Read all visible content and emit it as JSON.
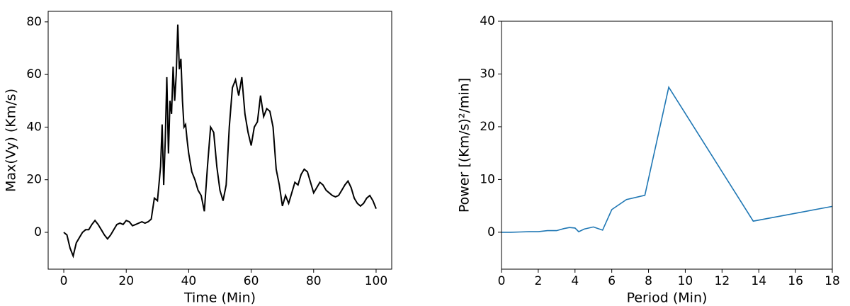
{
  "chart_data": [
    {
      "type": "line",
      "x_label": "Time (Min)",
      "y_label": "Max(Vy) (Km/s)",
      "xlim": [
        -5,
        105
      ],
      "ylim": [
        -14,
        84
      ],
      "xticks": [
        0,
        20,
        40,
        60,
        80,
        100
      ],
      "yticks": [
        0,
        20,
        40,
        60,
        80
      ],
      "series": [
        {
          "color": "#000000",
          "x": [
            0,
            1,
            2,
            3,
            4,
            5,
            6,
            7,
            8,
            9,
            10,
            11,
            12,
            13,
            14,
            15,
            16,
            17,
            18,
            19,
            20,
            21,
            22,
            23,
            24,
            25,
            26,
            27,
            28,
            29,
            30,
            31,
            31.5,
            32,
            32.5,
            33,
            33.5,
            34,
            34.5,
            35,
            35.5,
            36,
            36.5,
            37,
            37.5,
            38,
            38.5,
            39,
            39.5,
            40,
            41,
            42,
            43,
            44,
            45,
            46,
            47,
            48,
            49,
            50,
            51,
            52,
            53,
            54,
            55,
            56,
            57,
            58,
            59,
            60,
            61,
            62,
            63,
            64,
            65,
            66,
            67,
            68,
            69,
            70,
            71,
            72,
            73,
            74,
            75,
            76,
            77,
            78,
            79,
            80,
            81,
            82,
            83,
            84,
            85,
            86,
            87,
            88,
            89,
            90,
            91,
            92,
            93,
            94,
            95,
            96,
            97,
            98,
            99,
            100
          ],
          "values": [
            0,
            -1,
            -6,
            -9,
            -4,
            -2,
            0,
            1,
            1,
            3,
            4.5,
            3,
            1,
            -1,
            -2.5,
            -1,
            1,
            3,
            3.5,
            3,
            4.5,
            4,
            2.5,
            3,
            3.5,
            4,
            3.5,
            4,
            5,
            13,
            12,
            25,
            41,
            18,
            35,
            59,
            30,
            50,
            45,
            63,
            50,
            60,
            79,
            62,
            66,
            50,
            40,
            41,
            35,
            30,
            23,
            20,
            16,
            14,
            8,
            25,
            40,
            38,
            25,
            16,
            12,
            18,
            40,
            55,
            58,
            52,
            59,
            45,
            38,
            33,
            40,
            42,
            52,
            44,
            47,
            46,
            40,
            24,
            18,
            10,
            14,
            11,
            15,
            19,
            18,
            22,
            24,
            23,
            19,
            15,
            17,
            19,
            18,
            16,
            15,
            14,
            13.5,
            14,
            16,
            18,
            19.5,
            17,
            13,
            11,
            10,
            11,
            13,
            14,
            12,
            9
          ]
        }
      ]
    },
    {
      "type": "line",
      "x_label": "Period (Min)",
      "y_label": "Power [(Km/s)²/min]",
      "xlim": [
        0,
        18
      ],
      "ylim": [
        -7,
        40
      ],
      "xticks": [
        0,
        2,
        4,
        6,
        8,
        10,
        12,
        14,
        16,
        18
      ],
      "yticks": [
        0,
        10,
        20,
        30,
        40
      ],
      "series": [
        {
          "color": "#1f77b4",
          "x": [
            0,
            0.5,
            1,
            1.5,
            2,
            2.5,
            3,
            3.4,
            3.7,
            4,
            4.2,
            4.5,
            5,
            5.5,
            6,
            6.8,
            7.8,
            9.1,
            13.7,
            18
          ],
          "values": [
            0,
            0,
            0.05,
            0.1,
            0.1,
            0.3,
            0.3,
            0.7,
            0.9,
            0.8,
            0.1,
            0.6,
            1,
            0.4,
            4.3,
            6.2,
            7,
            27.5,
            2.1,
            4.9
          ]
        }
      ]
    }
  ]
}
